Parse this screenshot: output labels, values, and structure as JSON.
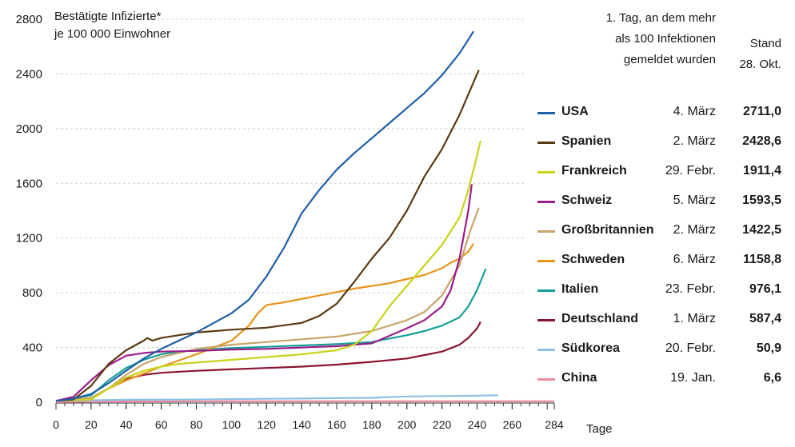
{
  "chart_data": {
    "type": "line",
    "ylabel": "Bestätigte Infizierte*\nje 100 000 Einwohner",
    "xlabel": "Tage",
    "ylim": [
      0,
      2800
    ],
    "xlim": [
      0,
      284
    ],
    "yticks": [
      0,
      400,
      800,
      1200,
      1600,
      2000,
      2400,
      2800
    ],
    "xticks": [
      0,
      20,
      40,
      60,
      80,
      100,
      120,
      140,
      160,
      180,
      200,
      220,
      240,
      260,
      284
    ],
    "grid": "horizontal dashed",
    "legend_position": "right",
    "legend_header_date": "1. Tag, an dem mehr\nals 100 Infektionen\ngemeldet wurden",
    "legend_header_value": "Stand\n28. Okt.",
    "series": [
      {
        "name": "USA",
        "date": "4. März",
        "value_label": "2711,0",
        "color": "#1f5fa8",
        "x": [
          0,
          10,
          20,
          30,
          40,
          50,
          60,
          70,
          80,
          90,
          100,
          110,
          120,
          130,
          140,
          150,
          160,
          170,
          180,
          190,
          200,
          210,
          220,
          230,
          238
        ],
        "y": [
          10,
          25,
          60,
          140,
          230,
          320,
          390,
          450,
          510,
          580,
          650,
          750,
          920,
          1130,
          1380,
          1550,
          1700,
          1820,
          1930,
          2040,
          2150,
          2260,
          2390,
          2550,
          2711
        ]
      },
      {
        "name": "Spanien",
        "date": "2. März",
        "value_label": "2428,6",
        "color": "#5a3a12",
        "x": [
          0,
          10,
          20,
          30,
          40,
          50,
          52,
          55,
          60,
          70,
          80,
          100,
          120,
          140,
          150,
          160,
          170,
          180,
          190,
          200,
          210,
          220,
          230,
          235,
          241
        ],
        "y": [
          10,
          20,
          120,
          280,
          380,
          450,
          470,
          450,
          470,
          490,
          510,
          530,
          545,
          580,
          630,
          720,
          880,
          1050,
          1200,
          1400,
          1650,
          1850,
          2100,
          2250,
          2428.6
        ]
      },
      {
        "name": "Frankreich",
        "date": "29. Febr.",
        "value_label": "1911,4",
        "color": "#c9d31a",
        "x": [
          0,
          20,
          30,
          40,
          50,
          60,
          70,
          80,
          100,
          120,
          140,
          160,
          170,
          180,
          190,
          200,
          210,
          220,
          230,
          235,
          238,
          242
        ],
        "y": [
          10,
          20,
          100,
          180,
          230,
          260,
          280,
          290,
          310,
          330,
          350,
          380,
          420,
          520,
          700,
          850,
          1000,
          1150,
          1350,
          1550,
          1700,
          1911.4
        ]
      },
      {
        "name": "Schweiz",
        "date": "5. März",
        "value_label": "1593,5",
        "color": "#9b1d8c",
        "x": [
          0,
          10,
          20,
          30,
          40,
          50,
          60,
          80,
          100,
          120,
          140,
          160,
          180,
          200,
          210,
          220,
          225,
          230,
          235,
          237
        ],
        "y": [
          10,
          40,
          160,
          270,
          340,
          360,
          370,
          375,
          385,
          390,
          400,
          410,
          430,
          540,
          600,
          700,
          820,
          1050,
          1400,
          1593.5
        ]
      },
      {
        "name": "Großbritannien",
        "date": "2. März",
        "value_label": "1422,5",
        "color": "#c8a46a",
        "x": [
          0,
          20,
          30,
          40,
          50,
          60,
          70,
          80,
          100,
          120,
          140,
          160,
          180,
          200,
          210,
          220,
          230,
          236,
          241
        ],
        "y": [
          10,
          30,
          100,
          200,
          280,
          330,
          360,
          390,
          420,
          440,
          460,
          480,
          520,
          600,
          660,
          780,
          1000,
          1250,
          1422.5
        ]
      },
      {
        "name": "Schweden",
        "date": "6. März",
        "value_label": "1158,8",
        "color": "#e8941a",
        "x": [
          0,
          20,
          30,
          40,
          50,
          60,
          80,
          100,
          110,
          115,
          120,
          130,
          150,
          170,
          190,
          200,
          210,
          220,
          225,
          230,
          235,
          238
        ],
        "y": [
          10,
          30,
          100,
          160,
          210,
          260,
          350,
          450,
          560,
          650,
          710,
          730,
          780,
          830,
          870,
          900,
          930,
          980,
          1020,
          1050,
          1100,
          1158.8
        ]
      },
      {
        "name": "Italien",
        "date": "23. Febr.",
        "value_label": "976,1",
        "color": "#14a096",
        "x": [
          0,
          20,
          30,
          40,
          50,
          60,
          70,
          80,
          100,
          120,
          140,
          160,
          180,
          200,
          210,
          220,
          230,
          235,
          240,
          245
        ],
        "y": [
          10,
          50,
          160,
          250,
          310,
          350,
          370,
          380,
          395,
          405,
          415,
          425,
          440,
          490,
          520,
          560,
          620,
          700,
          820,
          976.1
        ]
      },
      {
        "name": "Deutschland",
        "date": "1. März",
        "value_label": "587,4",
        "color": "#8a1530",
        "x": [
          0,
          20,
          30,
          40,
          50,
          60,
          80,
          100,
          120,
          140,
          160,
          180,
          200,
          210,
          220,
          230,
          235,
          240,
          242
        ],
        "y": [
          10,
          30,
          100,
          170,
          200,
          215,
          230,
          240,
          250,
          260,
          275,
          295,
          320,
          345,
          370,
          420,
          470,
          540,
          587.4
        ]
      },
      {
        "name": "Südkorea",
        "date": "20. Febr.",
        "value_label": "50,9",
        "color": "#8ec1e6",
        "x": [
          0,
          40,
          80,
          120,
          160,
          180,
          190,
          200,
          220,
          240,
          252
        ],
        "y": [
          10,
          18,
          20,
          25,
          30,
          32,
          38,
          42,
          45,
          48,
          50.9
        ]
      },
      {
        "name": "China",
        "date": "19. Jan.",
        "value_label": "6,6",
        "color": "#ef8aa0",
        "x": [
          0,
          20,
          40,
          100,
          200,
          284
        ],
        "y": [
          1,
          5,
          6,
          6.4,
          6.5,
          6.6
        ]
      }
    ]
  }
}
